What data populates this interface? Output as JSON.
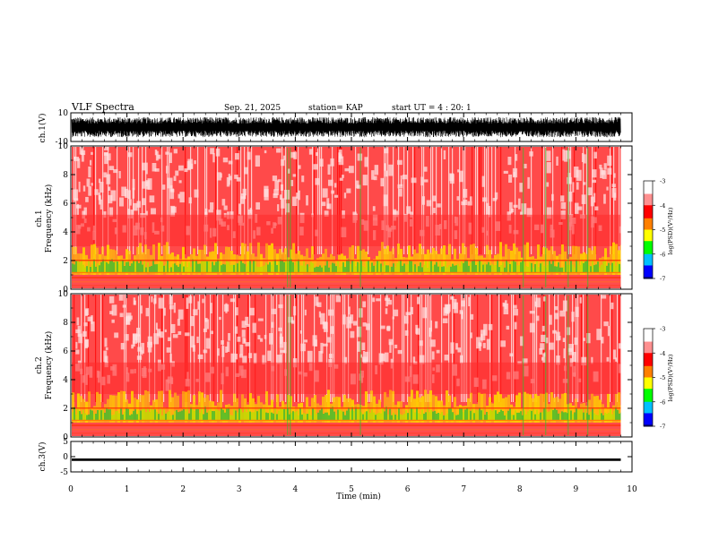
{
  "header": {
    "title": "VLF Spectra",
    "date": "Sep. 21, 2025",
    "station": "station= KAP",
    "start": "start  UT =   4 : 20: 1"
  },
  "colors": {
    "background_spectrum": "#ff2020",
    "low_band": "#ffd000",
    "green_band": "#30c030",
    "trace": "#000000"
  },
  "chart_data": [
    {
      "type": "line",
      "name": "ch1-waveform",
      "ylabel": "ch.1(V)",
      "ylim": [
        -10,
        10
      ],
      "yticks": [
        "10",
        "-10"
      ],
      "xlim": [
        0,
        10
      ],
      "amplitude_typical": [
        -7,
        7
      ]
    },
    {
      "type": "heatmap",
      "name": "ch1-spectrogram",
      "ylabel": "Frequency (kHz)",
      "channel_label": "ch.1",
      "ylim": [
        0,
        10
      ],
      "yticks": [
        "0",
        "2",
        "4",
        "6",
        "8",
        "10"
      ],
      "xlim": [
        0,
        10
      ],
      "colorbar": {
        "label": "log(PSD)(V²/Hz)",
        "range": [
          -7,
          -3
        ],
        "ticks": [
          "-3",
          "-4",
          "-5",
          "-6",
          "-7"
        ]
      }
    },
    {
      "type": "heatmap",
      "name": "ch2-spectrogram",
      "ylabel": "Frequency (kHz)",
      "channel_label": "ch.2",
      "ylim": [
        0,
        10
      ],
      "yticks": [
        "0",
        "2",
        "4",
        "6",
        "8",
        "10"
      ],
      "xlim": [
        0,
        10
      ],
      "colorbar": {
        "label": "log(PSD)(V²/Hz)",
        "range": [
          -7,
          -3
        ],
        "ticks": [
          "-3",
          "-4",
          "-5",
          "-6",
          "-7"
        ]
      }
    },
    {
      "type": "line",
      "name": "ch3-waveform",
      "ylabel": "ch.3(V)",
      "ylim": [
        -5,
        5
      ],
      "yticks": [
        "5",
        "0",
        "-5"
      ],
      "xlim": [
        0,
        10
      ],
      "level": -1,
      "amplitude": 0.4,
      "xlabel": "Time  (min)",
      "xticks": [
        "0",
        "1",
        "2",
        "3",
        "4",
        "5",
        "6",
        "7",
        "8",
        "9",
        "10"
      ],
      "data_end_min": 9.8
    }
  ]
}
